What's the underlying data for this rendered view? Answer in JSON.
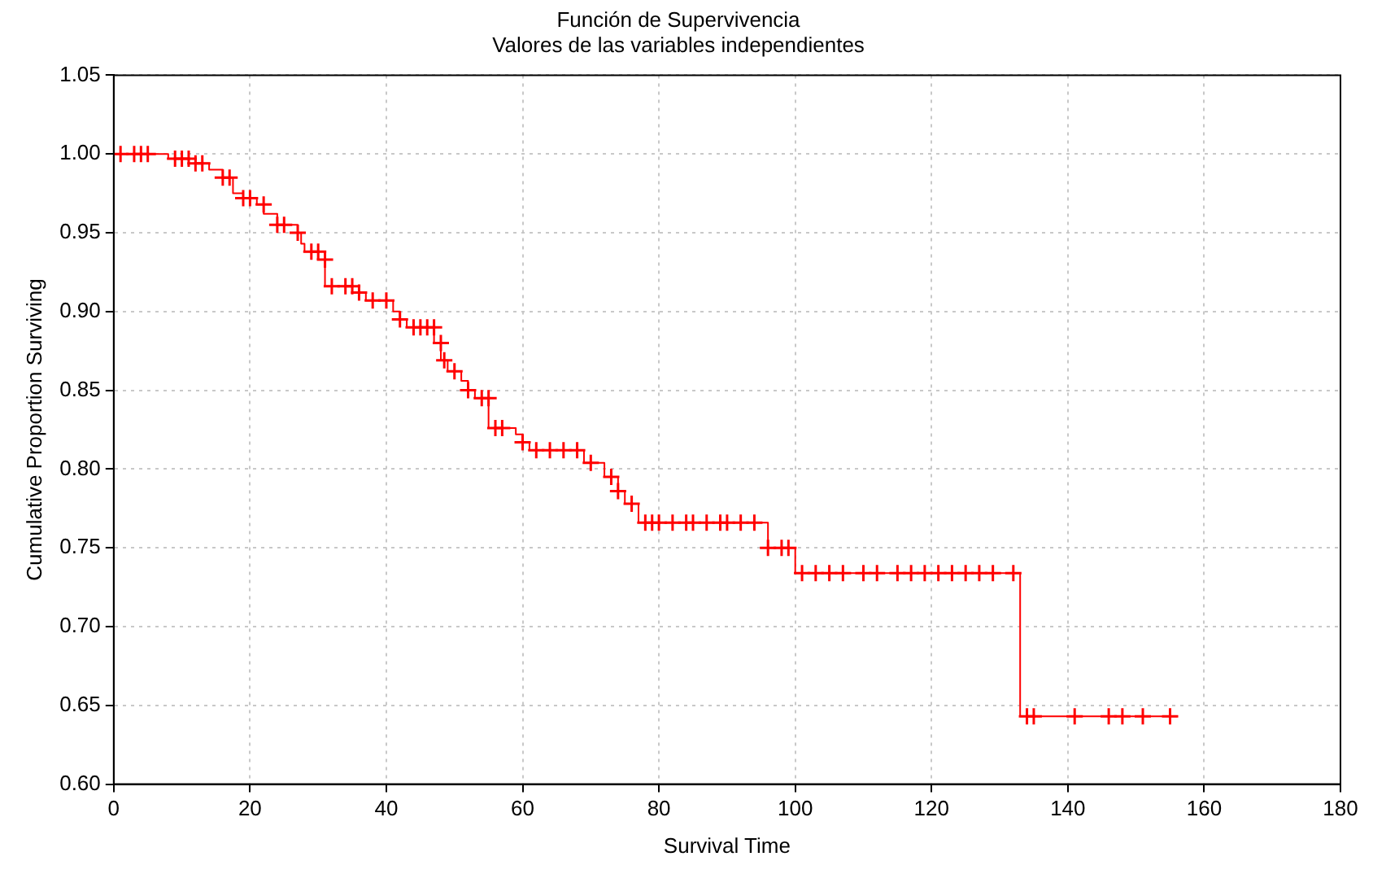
{
  "chart_data": {
    "type": "step",
    "title": "Función de Supervivencia",
    "subtitle": "Valores de las variables independientes",
    "xlabel": "Survival Time",
    "ylabel": "Cumulative Proportion Surviving",
    "xlim": [
      0,
      180
    ],
    "xticks": [
      0,
      20,
      40,
      60,
      80,
      100,
      120,
      140,
      160,
      180
    ],
    "ylim": [
      0.6,
      1.05
    ],
    "yticks": [
      {
        "value": 0.6,
        "label": "0.60"
      },
      {
        "value": 0.65,
        "label": "0.65"
      },
      {
        "value": 0.7,
        "label": "0.70"
      },
      {
        "value": 0.75,
        "label": "0.75"
      },
      {
        "value": 0.8,
        "label": "0.80"
      },
      {
        "value": 0.85,
        "label": "0.85"
      },
      {
        "value": 0.9,
        "label": "0.90"
      },
      {
        "value": 0.95,
        "label": "0.95"
      },
      {
        "value": 1.0,
        "label": "1.00"
      },
      {
        "value": 1.05,
        "label": "1.05"
      }
    ],
    "grid": true,
    "legend": false,
    "series": [
      {
        "type": "step",
        "color": "#ff0000",
        "marker": "none",
        "line_style": "solid",
        "x": [
          0,
          8,
          12,
          14,
          16,
          17.5,
          19,
          21,
          22,
          24,
          27,
          27.5,
          28,
          30,
          31,
          35,
          37,
          41,
          42,
          43,
          47,
          48,
          49,
          51,
          52,
          53,
          55,
          59,
          60,
          61,
          69,
          72,
          74,
          75,
          77,
          96,
          100,
          133,
          156
        ],
        "values": [
          1.0,
          0.997,
          0.994,
          0.99,
          0.985,
          0.975,
          0.972,
          0.968,
          0.962,
          0.955,
          0.95,
          0.943,
          0.938,
          0.933,
          0.916,
          0.912,
          0.907,
          0.9,
          0.895,
          0.89,
          0.88,
          0.869,
          0.862,
          0.856,
          0.85,
          0.845,
          0.826,
          0.822,
          0.817,
          0.812,
          0.804,
          0.795,
          0.786,
          0.778,
          0.766,
          0.75,
          0.734,
          0.643,
          0.643
        ]
      },
      {
        "type": "scatter",
        "color": "#ff0000",
        "marker": "cross",
        "x": [
          1,
          3,
          4,
          5,
          9,
          10,
          11,
          12,
          13,
          16,
          17,
          19,
          20,
          22,
          24,
          25,
          27,
          29,
          30,
          31,
          32,
          34,
          35,
          36,
          38,
          40,
          42,
          44,
          45,
          46,
          47,
          48,
          48.5,
          50,
          52,
          54,
          55,
          56,
          57,
          60,
          62,
          64,
          66,
          68,
          70,
          73,
          74,
          76,
          78,
          79,
          80,
          82,
          84,
          85,
          87,
          89,
          90,
          92,
          94,
          96,
          98,
          99,
          101,
          103,
          105,
          107,
          110,
          112,
          115,
          117,
          119,
          121,
          123,
          125,
          127,
          129,
          132,
          134,
          135,
          141,
          146,
          148,
          151,
          155
        ],
        "values": [
          1.0,
          1.0,
          1.0,
          1.0,
          0.997,
          0.997,
          0.997,
          0.994,
          0.994,
          0.985,
          0.985,
          0.972,
          0.972,
          0.968,
          0.955,
          0.955,
          0.95,
          0.938,
          0.938,
          0.933,
          0.916,
          0.916,
          0.916,
          0.912,
          0.907,
          0.907,
          0.895,
          0.89,
          0.89,
          0.89,
          0.89,
          0.88,
          0.869,
          0.862,
          0.85,
          0.845,
          0.845,
          0.826,
          0.826,
          0.817,
          0.812,
          0.812,
          0.812,
          0.812,
          0.804,
          0.795,
          0.786,
          0.778,
          0.766,
          0.766,
          0.766,
          0.766,
          0.766,
          0.766,
          0.766,
          0.766,
          0.766,
          0.766,
          0.766,
          0.75,
          0.75,
          0.75,
          0.734,
          0.734,
          0.734,
          0.734,
          0.734,
          0.734,
          0.734,
          0.734,
          0.734,
          0.734,
          0.734,
          0.734,
          0.734,
          0.734,
          0.734,
          0.643,
          0.643,
          0.643,
          0.643,
          0.643,
          0.643,
          0.643
        ]
      }
    ]
  }
}
